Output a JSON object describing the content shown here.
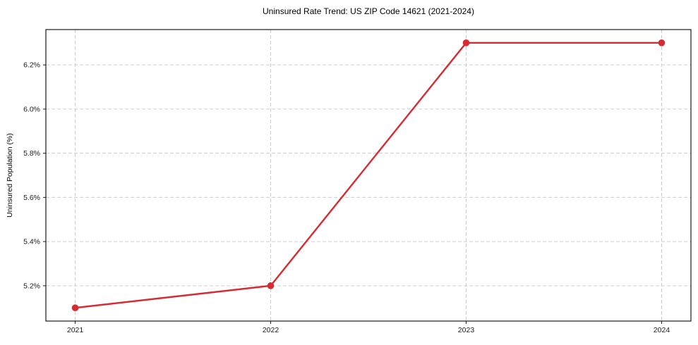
{
  "chart_data": {
    "type": "line",
    "title": "Uninsured Rate Trend: US ZIP Code 14621 (2021-2024)",
    "xlabel": "",
    "ylabel": "Uninsured Population (%)",
    "x": [
      2021,
      2022,
      2023,
      2024
    ],
    "values": [
      5.1,
      5.2,
      6.3,
      6.3
    ],
    "x_tick_labels": [
      "2021",
      "2022",
      "2023",
      "2024"
    ],
    "y_ticks": [
      5.2,
      5.4,
      5.6,
      5.8,
      6.0,
      6.2
    ],
    "y_tick_labels": [
      "5.2%",
      "5.4%",
      "5.6%",
      "5.8%",
      "6.0%",
      "6.2%"
    ],
    "xlim": [
      2020.85,
      2024.15
    ],
    "ylim": [
      5.04,
      6.36
    ],
    "grid": true,
    "legend": "none",
    "line_color": "#d62b32",
    "marker_color": "#d62b32",
    "grid_color": "#cccccc",
    "spine_color": "#1a1a1a",
    "tick_label_color": "#1a1a1a",
    "background_color": "#ffffff"
  }
}
